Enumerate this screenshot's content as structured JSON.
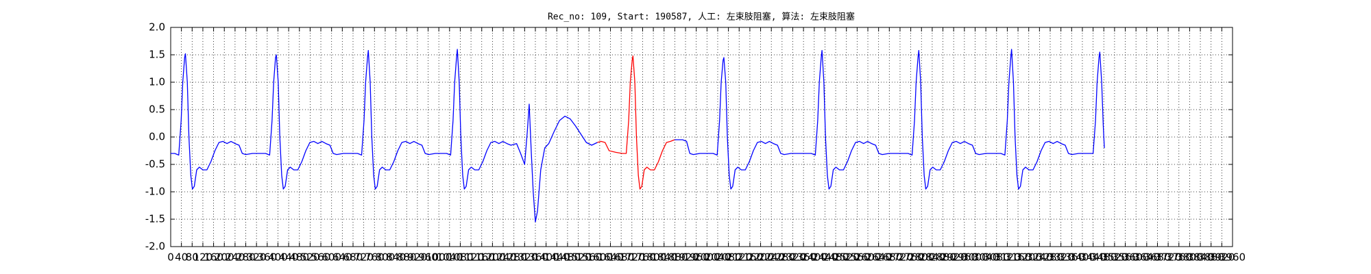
{
  "chart_data": {
    "type": "line",
    "title": "Rec_no: 109, Start: 190587, 人工: 左束肢阻塞, 算法: 左束肢阻塞",
    "xlim": [
      0,
      3960
    ],
    "xticks": [
      0,
      40,
      80,
      120,
      160,
      200,
      240,
      280,
      320,
      360,
      400,
      440,
      480,
      520,
      560,
      600,
      640,
      680,
      720,
      760,
      800,
      840,
      880,
      920,
      960,
      1000,
      1040,
      1080,
      1120,
      1160,
      1200,
      1240,
      1280,
      1320,
      1360,
      1400,
      1440,
      1480,
      1520,
      1560,
      1600,
      1640,
      1680,
      1720,
      1760,
      1800,
      1840,
      1880,
      1920,
      1960,
      2000,
      2040,
      2080,
      2120,
      2160,
      2200,
      2240,
      2280,
      2320,
      2360,
      2400,
      2440,
      2480,
      2520,
      2560,
      2600,
      2640,
      2680,
      2720,
      2760,
      2800,
      2840,
      2880,
      2920,
      2960,
      3000,
      3040,
      3080,
      3120,
      3160,
      3200,
      3240,
      3280,
      3320,
      3360,
      3400,
      3440,
      3480,
      3520,
      3560,
      3600,
      3640,
      3680,
      3720,
      3760,
      3800,
      3840,
      3880,
      3920,
      3960
    ],
    "ylim": [
      -2,
      2
    ],
    "yticks": [
      {
        "value": -2,
        "label": "-2.0"
      },
      -1.5,
      {
        "value": -1,
        "label": "-1.0"
      },
      -0.5,
      {
        "value": 0,
        "label": "0.0"
      },
      0.5,
      {
        "value": 1,
        "label": "1.0"
      },
      1.5,
      {
        "value": 2,
        "label": "2.0"
      }
    ],
    "grid": true,
    "series": [
      {
        "color": "#0000ff",
        "x": [
          0,
          15,
          30,
          39,
          45,
          52,
          55,
          62,
          68,
          75,
          81,
          88,
          97,
          107,
          120,
          135,
          150,
          165,
          180,
          195,
          210,
          225,
          240,
          255,
          267,
          280,
          305,
          330,
          354,
          369,
          378,
          384,
          391,
          394,
          401,
          407,
          414,
          420,
          427,
          436,
          446,
          459,
          474,
          489,
          504,
          519,
          534,
          549,
          564,
          579,
          594,
          606,
          619,
          644,
          669,
          697,
          712,
          721,
          727,
          734,
          737,
          744,
          750,
          757,
          763,
          770,
          779,
          789,
          802,
          817,
          832,
          847,
          862,
          877,
          892,
          907,
          922,
          937,
          949,
          962,
          987,
          1012,
          1029,
          1044,
          1053,
          1059,
          1066,
          1069,
          1076,
          1082,
          1089,
          1095,
          1102,
          1111,
          1121,
          1134,
          1149,
          1164,
          1179,
          1194,
          1209,
          1224,
          1239,
          1254,
          1269,
          1290,
          1305,
          1320,
          1330,
          1337,
          1345,
          1352,
          1360,
          1368,
          1380,
          1395,
          1410,
          1430,
          1450,
          1470,
          1490,
          1510,
          1530,
          1550,
          1570,
          1591,
          1735,
          1879,
          1894,
          1909,
          1924,
          1936,
          1949,
          1974,
          1999,
          2023,
          2038,
          2047,
          2053,
          2060,
          2063,
          2070,
          2076,
          2083,
          2089,
          2096,
          2105,
          2115,
          2128,
          2143,
          2158,
          2173,
          2188,
          2203,
          2218,
          2233,
          2248,
          2263,
          2275,
          2288,
          2313,
          2338,
          2363,
          2389,
          2404,
          2413,
          2419,
          2426,
          2429,
          2436,
          2442,
          2449,
          2455,
          2462,
          2471,
          2481,
          2494,
          2509,
          2524,
          2539,
          2554,
          2569,
          2584,
          2599,
          2614,
          2629,
          2641,
          2654,
          2679,
          2704,
          2730,
          2750,
          2765,
          2774,
          2780,
          2787,
          2790,
          2797,
          2803,
          2810,
          2816,
          2823,
          2832,
          2842,
          2855,
          2870,
          2885,
          2900,
          2915,
          2930,
          2945,
          2960,
          2975,
          2990,
          3002,
          3015,
          3040,
          3065,
          3080,
          3096,
          3111,
          3120,
          3126,
          3133,
          3136,
          3143,
          3149,
          3156,
          3162,
          3169,
          3178,
          3188,
          3201,
          3216,
          3231,
          3246,
          3261,
          3276,
          3291,
          3306,
          3321,
          3336,
          3348,
          3361,
          3386,
          3411,
          3425,
          3440,
          3449,
          3455,
          3462,
          3465,
          3472,
          3478,
          3482
        ],
        "values": [
          -0.3,
          -0.3,
          -0.33,
          0.3,
          1.0,
          1.45,
          1.52,
          1.0,
          0.0,
          -0.7,
          -0.95,
          -0.9,
          -0.6,
          -0.55,
          -0.6,
          -0.6,
          -0.45,
          -0.25,
          -0.1,
          -0.08,
          -0.12,
          -0.08,
          -0.12,
          -0.15,
          -0.3,
          -0.32,
          -0.3,
          -0.3,
          -0.3,
          -0.33,
          0.3,
          1.0,
          1.45,
          1.5,
          1.0,
          0.0,
          -0.7,
          -0.95,
          -0.9,
          -0.6,
          -0.55,
          -0.6,
          -0.6,
          -0.45,
          -0.25,
          -0.1,
          -0.08,
          -0.12,
          -0.08,
          -0.12,
          -0.15,
          -0.3,
          -0.32,
          -0.3,
          -0.3,
          -0.3,
          -0.33,
          0.3,
          1.0,
          1.45,
          1.58,
          1.0,
          0.0,
          -0.7,
          -0.95,
          -0.9,
          -0.6,
          -0.55,
          -0.6,
          -0.6,
          -0.45,
          -0.25,
          -0.1,
          -0.08,
          -0.12,
          -0.08,
          -0.12,
          -0.15,
          -0.3,
          -0.32,
          -0.3,
          -0.3,
          -0.3,
          -0.33,
          0.3,
          1.0,
          1.45,
          1.6,
          1.0,
          0.0,
          -0.7,
          -0.95,
          -0.9,
          -0.6,
          -0.55,
          -0.6,
          -0.6,
          -0.45,
          -0.25,
          -0.1,
          -0.08,
          -0.12,
          -0.08,
          -0.12,
          -0.15,
          -0.12,
          -0.3,
          -0.5,
          0.1,
          0.6,
          -0.3,
          -1.0,
          -1.55,
          -1.35,
          -0.6,
          -0.2,
          -0.12,
          0.1,
          0.3,
          0.38,
          0.33,
          0.2,
          0.05,
          -0.1,
          -0.15,
          -0.1,
          null,
          -0.05,
          -0.05,
          -0.05,
          -0.08,
          -0.3,
          -0.32,
          -0.3,
          -0.3,
          -0.3,
          -0.33,
          0.3,
          1.0,
          1.4,
          1.45,
          1.0,
          0.0,
          -0.7,
          -0.95,
          -0.9,
          -0.6,
          -0.55,
          -0.6,
          -0.6,
          -0.45,
          -0.25,
          -0.1,
          -0.08,
          -0.12,
          -0.08,
          -0.12,
          -0.15,
          -0.3,
          -0.32,
          -0.3,
          -0.3,
          -0.3,
          -0.3,
          -0.33,
          0.3,
          1.0,
          1.45,
          1.58,
          1.0,
          0.0,
          -0.7,
          -0.95,
          -0.9,
          -0.6,
          -0.55,
          -0.6,
          -0.6,
          -0.45,
          -0.25,
          -0.1,
          -0.08,
          -0.12,
          -0.08,
          -0.12,
          -0.15,
          -0.3,
          -0.32,
          -0.3,
          -0.3,
          -0.3,
          -0.3,
          -0.33,
          0.3,
          1.0,
          1.45,
          1.58,
          1.0,
          0.0,
          -0.7,
          -0.95,
          -0.9,
          -0.6,
          -0.55,
          -0.6,
          -0.6,
          -0.45,
          -0.25,
          -0.1,
          -0.08,
          -0.12,
          -0.08,
          -0.12,
          -0.15,
          -0.3,
          -0.32,
          -0.3,
          -0.3,
          -0.3,
          -0.3,
          -0.33,
          0.3,
          1.0,
          1.45,
          1.6,
          1.0,
          0.0,
          -0.7,
          -0.95,
          -0.9,
          -0.6,
          -0.55,
          -0.6,
          -0.6,
          -0.45,
          -0.25,
          -0.1,
          -0.08,
          -0.12,
          -0.08,
          -0.12,
          -0.15,
          -0.3,
          -0.32,
          -0.3,
          -0.3,
          -0.3,
          -0.3,
          0.3,
          1.0,
          1.45,
          1.55,
          1.0,
          0.2,
          -0.2
        ]
      },
      {
        "color": "#ff0000",
        "x": [
          1591,
          1605,
          1620,
          1635,
          1660,
          1684,
          1699,
          1708,
          1714,
          1721,
          1724,
          1731,
          1737,
          1744,
          1750,
          1757,
          1766,
          1776,
          1789,
          1804,
          1819,
          1834,
          1849,
          1864,
          1879
        ],
        "values": [
          -0.1,
          -0.08,
          -0.1,
          -0.25,
          -0.28,
          -0.3,
          -0.3,
          0.3,
          1.0,
          1.4,
          1.48,
          1.0,
          0.0,
          -0.7,
          -0.95,
          -0.9,
          -0.6,
          -0.55,
          -0.6,
          -0.6,
          -0.45,
          -0.25,
          -0.1,
          -0.08,
          -0.05
        ]
      }
    ]
  }
}
